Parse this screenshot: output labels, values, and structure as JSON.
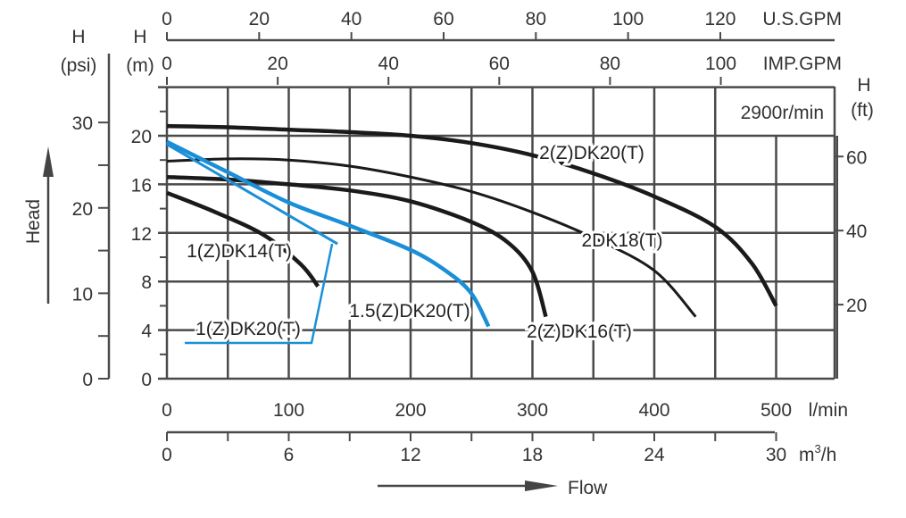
{
  "chart_data": {
    "type": "line",
    "speed_label": "2900r/min",
    "x_axis": {
      "unit": "l/min",
      "ticks": [
        0,
        100,
        200,
        300,
        400,
        500
      ],
      "range": [
        0,
        550
      ],
      "grid_step": 50
    },
    "x_axis_m3h": {
      "unit": "m³/h",
      "unit_base": "m",
      "unit_sup": "3",
      "unit_tail": "/h",
      "ticks": [
        0,
        6,
        12,
        18,
        24,
        30
      ]
    },
    "x_axis_us_gpm": {
      "unit": "U.S.GPM",
      "ticks": [
        0,
        20,
        40,
        60,
        80,
        100,
        120
      ]
    },
    "x_axis_imp_gpm": {
      "unit": "IMP.GPM",
      "ticks": [
        0,
        20,
        40,
        60,
        80,
        100
      ]
    },
    "y_axis_m": {
      "label": "H",
      "unit": "(m)",
      "ticks": [
        0,
        4,
        8,
        12,
        16,
        20
      ],
      "range": [
        0,
        24
      ],
      "grid_step": 4
    },
    "y_axis_psi": {
      "label": "H",
      "unit": "(psi)",
      "ticks": [
        0,
        10,
        20,
        30
      ]
    },
    "y_axis_ft": {
      "label": "H",
      "unit": "(ft)",
      "ticks": [
        20,
        40,
        60
      ]
    },
    "ylabel": "Head",
    "xlabel": "Flow",
    "grid": true,
    "series": [
      {
        "name": "2(Z)DK20(T)",
        "color": "#1a1a1a",
        "x": [
          0,
          50,
          100,
          150,
          200,
          250,
          300,
          350,
          400,
          450,
          480,
          500
        ],
        "y": [
          20.8,
          20.7,
          20.5,
          20.3,
          20.0,
          19.4,
          18.4,
          16.9,
          15.0,
          12.5,
          9.5,
          6.0
        ]
      },
      {
        "name": "2DK18(T)",
        "color": "#1a1a1a",
        "x": [
          0,
          50,
          100,
          150,
          200,
          250,
          300,
          350,
          400,
          434
        ],
        "y": [
          17.9,
          18.1,
          18.0,
          17.5,
          16.6,
          15.4,
          13.7,
          11.6,
          8.9,
          5.1
        ]
      },
      {
        "name": "2(Z)DK16(T)",
        "color": "#1a1a1a",
        "x": [
          0,
          50,
          100,
          150,
          200,
          250,
          280,
          300,
          311
        ],
        "y": [
          16.6,
          16.4,
          16.0,
          15.5,
          14.6,
          12.9,
          11.2,
          8.8,
          5.1
        ]
      },
      {
        "name": "1(Z)DK14(T)",
        "color": "#1a1a1a",
        "x": [
          0,
          40,
          80,
          110,
          124
        ],
        "y": [
          15.3,
          13.7,
          11.8,
          9.4,
          7.6
        ]
      },
      {
        "name": "1.5(Z)DK20(T)",
        "color": "#1a8fd8",
        "x": [
          0,
          50,
          100,
          150,
          200,
          230,
          250,
          264
        ],
        "y": [
          19.5,
          17.0,
          14.5,
          12.6,
          10.6,
          8.8,
          7.0,
          4.3
        ]
      },
      {
        "name": "1(Z)DK20(T)",
        "color": "#1a8fd8",
        "x": [
          0,
          70,
          140
        ],
        "y": [
          19.3,
          15.2,
          11.1
        ]
      }
    ]
  }
}
